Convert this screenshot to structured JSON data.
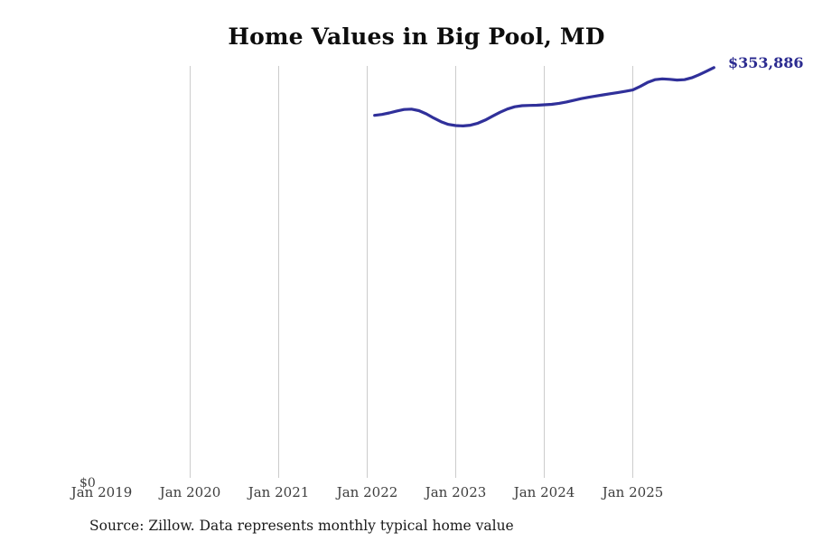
{
  "title": "Home Values in Big Pool, MD",
  "end_label": "$353,886",
  "y_axis": {
    "zero_label": "$0"
  },
  "x_axis": {
    "ticks": [
      "Jan 2019",
      "Jan 2020",
      "Jan 2021",
      "Jan 2022",
      "Jan 2023",
      "Jan 2024",
      "Jan 2025"
    ]
  },
  "source_note": "Source: Zillow. Data represents monthly typical home value",
  "colors": {
    "line": "#30309a",
    "end_label": "#2b2b90",
    "gridline": "#cccccc",
    "title": "#0d0d0d",
    "tick_text": "#3d3d3d",
    "source_text": "#1a1a1a"
  },
  "chart_data": {
    "type": "line",
    "title": "Home Values in Big Pool, MD",
    "series_name": "Typical home value (USD)",
    "xlabel": "",
    "ylabel": "",
    "ylim": [
      0,
      355270
    ],
    "grid": "vertical-only",
    "legend": "none",
    "x_ticks": [
      "Jan 2019",
      "Jan 2020",
      "Jan 2021",
      "Jan 2022",
      "Jan 2023",
      "Jan 2024",
      "Jan 2025"
    ],
    "end_value": 353886,
    "x": [
      "2022-02",
      "2022-03",
      "2022-04",
      "2022-05",
      "2022-06",
      "2022-07",
      "2022-08",
      "2022-09",
      "2022-10",
      "2022-11",
      "2022-12",
      "2023-01",
      "2023-02",
      "2023-03",
      "2023-04",
      "2023-05",
      "2023-06",
      "2023-07",
      "2023-08",
      "2023-09",
      "2023-10",
      "2023-11",
      "2023-12",
      "2024-01",
      "2024-02",
      "2024-03",
      "2024-04",
      "2024-05",
      "2024-06",
      "2024-07",
      "2024-08",
      "2024-09",
      "2024-10",
      "2024-11",
      "2024-12",
      "2025-01",
      "2025-02",
      "2025-03",
      "2025-04",
      "2025-05",
      "2025-06",
      "2025-07",
      "2025-08",
      "2025-09",
      "2025-10",
      "2025-11",
      "2025-12"
    ],
    "values": [
      313200,
      314000,
      315300,
      316900,
      318200,
      318500,
      317200,
      314500,
      311000,
      307800,
      305500,
      304500,
      304200,
      304800,
      306500,
      309200,
      312500,
      315800,
      318600,
      320500,
      321400,
      321700,
      321800,
      322200,
      322600,
      323400,
      324600,
      326000,
      327400,
      328600,
      329700,
      330700,
      331700,
      332700,
      333700,
      334800,
      337800,
      341200,
      343600,
      344300,
      343900,
      343300,
      343600,
      345200,
      347800,
      350800,
      353886
    ]
  }
}
